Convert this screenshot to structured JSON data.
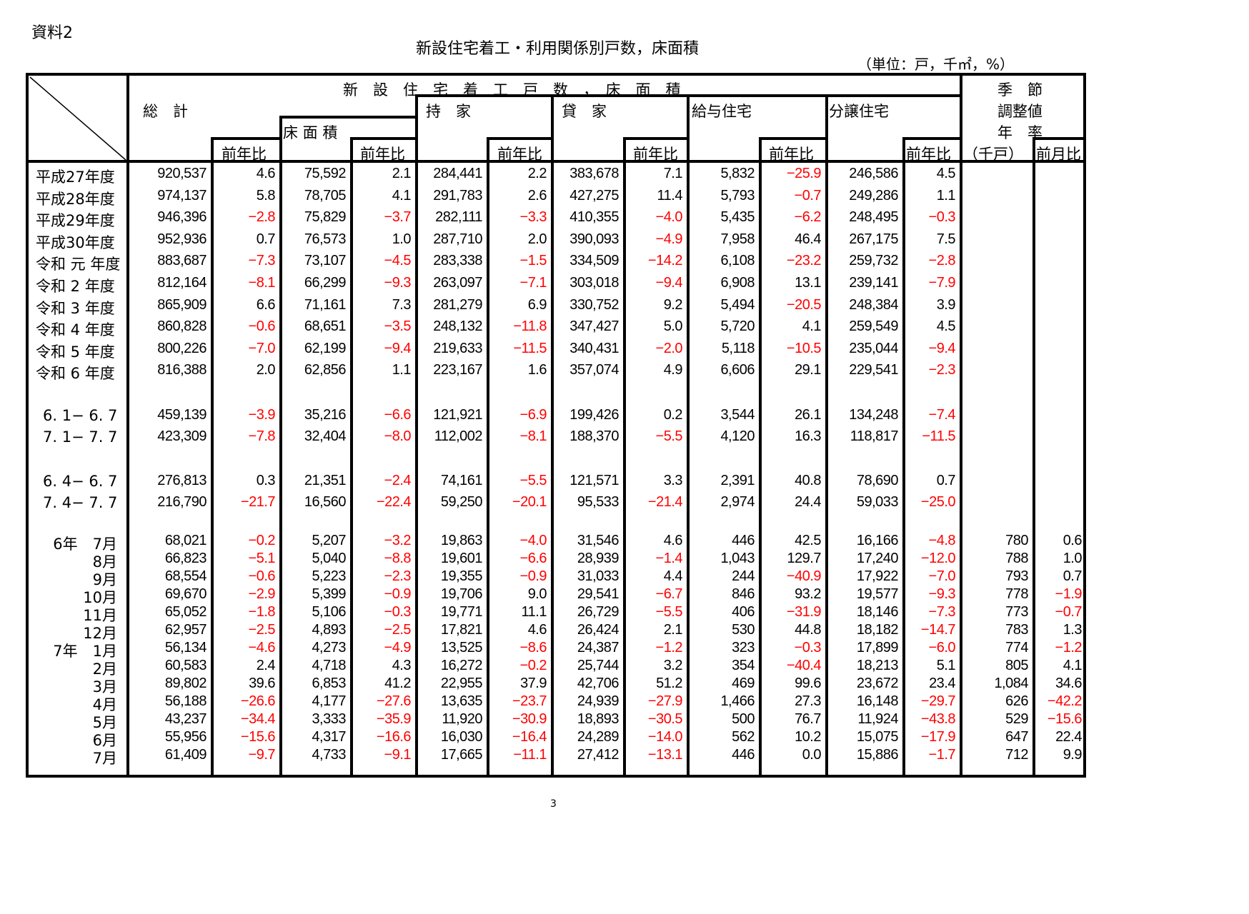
{
  "document": {
    "label": "資料2",
    "title": "新設住宅着工・利用関係別戸数，床面積",
    "unit": "（単位：戸，千㎡，%）",
    "page_number": "3"
  },
  "header": {
    "group_title": "新　設　住　宅　着　工　戸　数　，　床　面　積",
    "total": "総　計",
    "floor_area": "床 面 積",
    "owner": "持　家",
    "rental": "貸　家",
    "company": "給与住宅",
    "sale": "分譲住宅",
    "seasonal_1": "季　節",
    "seasonal_2": "調整値",
    "seasonal_3": "年　率",
    "seasonal_unit": "（千戸）",
    "yoy": "前年比",
    "mom": "前月比"
  },
  "rows": [
    {
      "label": "平成27年度",
      "v": [
        "920,537",
        "4.6",
        "75,592",
        "2.1",
        "284,441",
        "2.2",
        "383,678",
        "7.1",
        "5,832",
        "-25.9",
        "246,586",
        "4.5",
        "",
        ""
      ]
    },
    {
      "label": "平成28年度",
      "v": [
        "974,137",
        "5.8",
        "78,705",
        "4.1",
        "291,783",
        "2.6",
        "427,275",
        "11.4",
        "5,793",
        "-0.7",
        "249,286",
        "1.1",
        "",
        ""
      ]
    },
    {
      "label": "平成29年度",
      "v": [
        "946,396",
        "-2.8",
        "75,829",
        "-3.7",
        "282,111",
        "-3.3",
        "410,355",
        "-4.0",
        "5,435",
        "-6.2",
        "248,495",
        "-0.3",
        "",
        ""
      ]
    },
    {
      "label": "平成30年度",
      "v": [
        "952,936",
        "0.7",
        "76,573",
        "1.0",
        "287,710",
        "2.0",
        "390,093",
        "-4.9",
        "7,958",
        "46.4",
        "267,175",
        "7.5",
        "",
        ""
      ]
    },
    {
      "label": "令和 元 年度",
      "v": [
        "883,687",
        "-7.3",
        "73,107",
        "-4.5",
        "283,338",
        "-1.5",
        "334,509",
        "-14.2",
        "6,108",
        "-23.2",
        "259,732",
        "-2.8",
        "",
        ""
      ]
    },
    {
      "label": "令和 2 年度",
      "v": [
        "812,164",
        "-8.1",
        "66,299",
        "-9.3",
        "263,097",
        "-7.1",
        "303,018",
        "-9.4",
        "6,908",
        "13.1",
        "239,141",
        "-7.9",
        "",
        ""
      ]
    },
    {
      "label": "令和 3 年度",
      "v": [
        "865,909",
        "6.6",
        "71,161",
        "7.3",
        "281,279",
        "6.9",
        "330,752",
        "9.2",
        "5,494",
        "-20.5",
        "248,384",
        "3.9",
        "",
        ""
      ]
    },
    {
      "label": "令和 4 年度",
      "v": [
        "860,828",
        "-0.6",
        "68,651",
        "-3.5",
        "248,132",
        "-11.8",
        "347,427",
        "5.0",
        "5,720",
        "4.1",
        "259,549",
        "4.5",
        "",
        ""
      ]
    },
    {
      "label": "令和 5 年度",
      "v": [
        "800,226",
        "-7.0",
        "62,199",
        "-9.4",
        "219,633",
        "-11.5",
        "340,431",
        "-2.0",
        "5,118",
        "-10.5",
        "235,044",
        "-9.4",
        "",
        ""
      ]
    },
    {
      "label": "令和 6 年度",
      "v": [
        "816,388",
        "2.0",
        "62,856",
        "1.1",
        "223,167",
        "1.6",
        "357,074",
        "4.9",
        "6,606",
        "29.1",
        "229,541",
        "-2.3",
        "",
        ""
      ]
    },
    {
      "label": "6. 1− 6. 7",
      "v": [
        "459,139",
        "-3.9",
        "35,216",
        "-6.6",
        "121,921",
        "-6.9",
        "199,426",
        "0.2",
        "3,544",
        "26.1",
        "134,248",
        "-7.4",
        "",
        ""
      ]
    },
    {
      "label": "7. 1− 7. 7",
      "v": [
        "423,309",
        "-7.8",
        "32,404",
        "-8.0",
        "112,002",
        "-8.1",
        "188,370",
        "-5.5",
        "4,120",
        "16.3",
        "118,817",
        "-11.5",
        "",
        ""
      ]
    },
    {
      "label": "6. 4− 6. 7",
      "v": [
        "276,813",
        "0.3",
        "21,351",
        "-2.4",
        "74,161",
        "-5.5",
        "121,571",
        "3.3",
        "2,391",
        "40.8",
        "78,690",
        "0.7",
        "",
        ""
      ]
    },
    {
      "label": "7. 4− 7. 7",
      "v": [
        "216,790",
        "-21.7",
        "16,560",
        "-22.4",
        "59,250",
        "-20.1",
        "95,533",
        "-21.4",
        "2,974",
        "24.4",
        "59,033",
        "-25.0",
        "",
        ""
      ]
    },
    {
      "label": "6年　7月",
      "v": [
        "68,021",
        "-0.2",
        "5,207",
        "-3.2",
        "19,863",
        "-4.0",
        "31,546",
        "4.6",
        "446",
        "42.5",
        "16,166",
        "-4.8",
        "780",
        "0.6"
      ]
    },
    {
      "label": "8月",
      "v": [
        "66,823",
        "-5.1",
        "5,040",
        "-8.8",
        "19,601",
        "-6.6",
        "28,939",
        "-1.4",
        "1,043",
        "129.7",
        "17,240",
        "-12.0",
        "788",
        "1.0"
      ]
    },
    {
      "label": "9月",
      "v": [
        "68,554",
        "-0.6",
        "5,223",
        "-2.3",
        "19,355",
        "-0.9",
        "31,033",
        "4.4",
        "244",
        "-40.9",
        "17,922",
        "-7.0",
        "793",
        "0.7"
      ]
    },
    {
      "label": "10月",
      "v": [
        "69,670",
        "-2.9",
        "5,399",
        "-0.9",
        "19,706",
        "9.0",
        "29,541",
        "-6.7",
        "846",
        "93.2",
        "19,577",
        "-9.3",
        "778",
        "-1.9"
      ]
    },
    {
      "label": "11月",
      "v": [
        "65,052",
        "-1.8",
        "5,106",
        "-0.3",
        "19,771",
        "11.1",
        "26,729",
        "-5.5",
        "406",
        "-31.9",
        "18,146",
        "-7.3",
        "773",
        "-0.7"
      ]
    },
    {
      "label": "12月",
      "v": [
        "62,957",
        "-2.5",
        "4,893",
        "-2.5",
        "17,821",
        "4.6",
        "26,424",
        "2.1",
        "530",
        "44.8",
        "18,182",
        "-14.7",
        "783",
        "1.3"
      ]
    },
    {
      "label": "7年　1月",
      "v": [
        "56,134",
        "-4.6",
        "4,273",
        "-4.9",
        "13,525",
        "-8.6",
        "24,387",
        "-1.2",
        "323",
        "-0.3",
        "17,899",
        "-6.0",
        "774",
        "-1.2"
      ]
    },
    {
      "label": "2月",
      "v": [
        "60,583",
        "2.4",
        "4,718",
        "4.3",
        "16,272",
        "-0.2",
        "25,744",
        "3.2",
        "354",
        "-40.4",
        "18,213",
        "5.1",
        "805",
        "4.1"
      ]
    },
    {
      "label": "3月",
      "v": [
        "89,802",
        "39.6",
        "6,853",
        "41.2",
        "22,955",
        "37.9",
        "42,706",
        "51.2",
        "469",
        "99.6",
        "23,672",
        "23.4",
        "1,084",
        "34.6"
      ]
    },
    {
      "label": "4月",
      "v": [
        "56,188",
        "-26.6",
        "4,177",
        "-27.6",
        "13,635",
        "-23.7",
        "24,939",
        "-27.9",
        "1,466",
        "27.3",
        "16,148",
        "-29.7",
        "626",
        "-42.2"
      ]
    },
    {
      "label": "5月",
      "v": [
        "43,237",
        "-34.4",
        "3,333",
        "-35.9",
        "11,920",
        "-30.9",
        "18,893",
        "-30.5",
        "500",
        "76.7",
        "11,924",
        "-43.8",
        "529",
        "-15.6"
      ]
    },
    {
      "label": "6月",
      "v": [
        "55,956",
        "-15.6",
        "4,317",
        "-16.6",
        "16,030",
        "-16.4",
        "24,289",
        "-14.0",
        "562",
        "10.2",
        "15,075",
        "-17.9",
        "647",
        "22.4"
      ]
    },
    {
      "label": "7月",
      "v": [
        "61,409",
        "-9.7",
        "4,733",
        "-9.1",
        "17,665",
        "-11.1",
        "27,412",
        "-13.1",
        "446",
        "0.0",
        "15,886",
        "-1.7",
        "712",
        "9.9"
      ]
    }
  ],
  "colors": {
    "negative": "#ff0000",
    "text": "#000000",
    "border": "#000000"
  }
}
